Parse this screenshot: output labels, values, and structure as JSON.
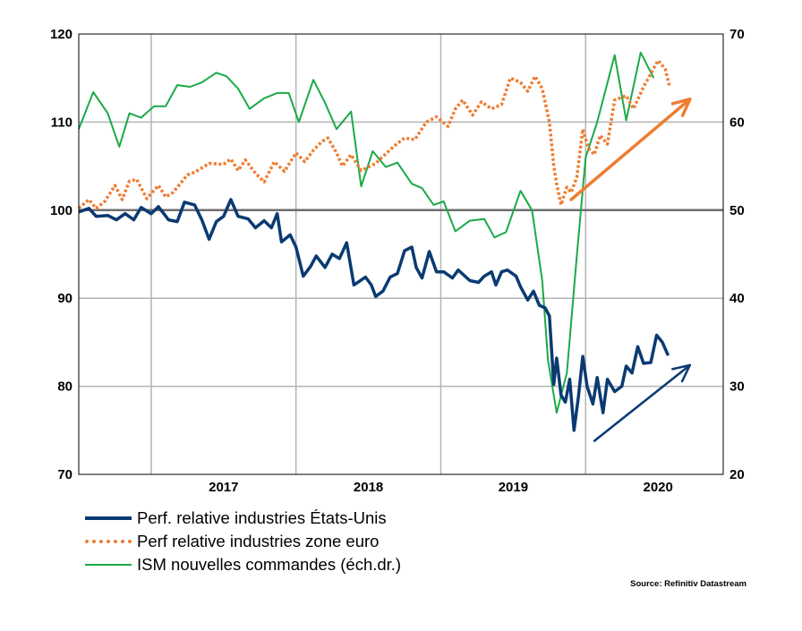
{
  "chart_data": {
    "type": "line",
    "x_labels": [
      "2017",
      "2018",
      "2019",
      "2020"
    ],
    "x_range": [
      2016.5,
      2020.95
    ],
    "y_left": {
      "range": [
        70,
        120
      ],
      "ticks": [
        70,
        80,
        90,
        100,
        110,
        120
      ]
    },
    "y_right": {
      "range": [
        20,
        70
      ],
      "ticks": [
        20,
        30,
        40,
        50,
        60,
        70
      ]
    },
    "grid": true,
    "reference_line": 100,
    "legend_position": "bottom-left",
    "series": [
      {
        "name": "Perf. relative industries États-Unis",
        "axis": "left",
        "color": "#0a3a72",
        "style": "solid",
        "points": [
          [
            2016.5,
            99.8
          ],
          [
            2016.57,
            100.2
          ],
          [
            2016.62,
            99.3
          ],
          [
            2016.7,
            99.4
          ],
          [
            2016.76,
            98.9
          ],
          [
            2016.82,
            99.6
          ],
          [
            2016.88,
            98.9
          ],
          [
            2016.93,
            100.3
          ],
          [
            2017.0,
            99.6
          ],
          [
            2017.05,
            100.4
          ],
          [
            2017.12,
            98.9
          ],
          [
            2017.18,
            98.7
          ],
          [
            2017.23,
            100.9
          ],
          [
            2017.3,
            100.6
          ],
          [
            2017.35,
            98.9
          ],
          [
            2017.4,
            96.7
          ],
          [
            2017.45,
            98.7
          ],
          [
            2017.5,
            99.3
          ],
          [
            2017.55,
            101.2
          ],
          [
            2017.6,
            99.3
          ],
          [
            2017.67,
            99.0
          ],
          [
            2017.72,
            98.0
          ],
          [
            2017.78,
            98.8
          ],
          [
            2017.83,
            98.0
          ],
          [
            2017.87,
            99.6
          ],
          [
            2017.9,
            96.4
          ],
          [
            2017.96,
            97.2
          ],
          [
            2018.0,
            95.8
          ],
          [
            2018.05,
            92.5
          ],
          [
            2018.1,
            93.6
          ],
          [
            2018.14,
            94.8
          ],
          [
            2018.2,
            93.5
          ],
          [
            2018.25,
            95.0
          ],
          [
            2018.3,
            94.5
          ],
          [
            2018.35,
            96.3
          ],
          [
            2018.4,
            91.5
          ],
          [
            2018.48,
            92.4
          ],
          [
            2018.52,
            91.5
          ],
          [
            2018.55,
            90.2
          ],
          [
            2018.6,
            90.8
          ],
          [
            2018.65,
            92.4
          ],
          [
            2018.7,
            92.8
          ],
          [
            2018.75,
            95.4
          ],
          [
            2018.8,
            95.8
          ],
          [
            2018.83,
            93.5
          ],
          [
            2018.87,
            92.3
          ],
          [
            2018.92,
            95.3
          ],
          [
            2018.97,
            93.0
          ],
          [
            2019.02,
            93.0
          ],
          [
            2019.08,
            92.3
          ],
          [
            2019.12,
            93.2
          ],
          [
            2019.2,
            92.0
          ],
          [
            2019.26,
            91.8
          ],
          [
            2019.3,
            92.5
          ],
          [
            2019.35,
            93.0
          ],
          [
            2019.38,
            91.5
          ],
          [
            2019.42,
            93.0
          ],
          [
            2019.46,
            93.2
          ],
          [
            2019.52,
            92.5
          ],
          [
            2019.55,
            91.3
          ],
          [
            2019.6,
            89.8
          ],
          [
            2019.64,
            90.8
          ],
          [
            2019.68,
            89.2
          ],
          [
            2019.72,
            88.9
          ],
          [
            2019.75,
            88.0
          ],
          [
            2019.78,
            80.2
          ],
          [
            2019.8,
            83.2
          ],
          [
            2019.83,
            79.0
          ],
          [
            2019.86,
            78.2
          ],
          [
            2019.89,
            80.8
          ],
          [
            2019.92,
            75.0
          ],
          [
            2019.95,
            78.8
          ],
          [
            2019.98,
            83.4
          ],
          [
            2020.01,
            80.0
          ],
          [
            2020.05,
            78.0
          ],
          [
            2020.08,
            81.0
          ],
          [
            2020.12,
            77.0
          ],
          [
            2020.15,
            80.8
          ],
          [
            2020.2,
            79.4
          ],
          [
            2020.25,
            80.0
          ],
          [
            2020.28,
            82.3
          ],
          [
            2020.32,
            81.5
          ],
          [
            2020.36,
            84.5
          ],
          [
            2020.4,
            82.6
          ],
          [
            2020.45,
            82.7
          ],
          [
            2020.49,
            85.8
          ],
          [
            2020.53,
            85.0
          ],
          [
            2020.57,
            83.5
          ]
        ]
      },
      {
        "name": "Perf relative industries zone euro",
        "axis": "left",
        "color": "#ee7d32",
        "style": "dotted",
        "points": [
          [
            2016.5,
            100.2
          ],
          [
            2016.57,
            101.2
          ],
          [
            2016.62,
            100.2
          ],
          [
            2016.68,
            101.0
          ],
          [
            2016.75,
            102.8
          ],
          [
            2016.8,
            101.2
          ],
          [
            2016.85,
            103.3
          ],
          [
            2016.9,
            103.5
          ],
          [
            2016.97,
            101.3
          ],
          [
            2017.05,
            102.8
          ],
          [
            2017.1,
            101.5
          ],
          [
            2017.15,
            102.0
          ],
          [
            2017.2,
            103.0
          ],
          [
            2017.25,
            104.0
          ],
          [
            2017.3,
            104.3
          ],
          [
            2017.4,
            105.3
          ],
          [
            2017.5,
            105.2
          ],
          [
            2017.55,
            105.8
          ],
          [
            2017.6,
            104.5
          ],
          [
            2017.65,
            105.7
          ],
          [
            2017.72,
            104.2
          ],
          [
            2017.78,
            103.2
          ],
          [
            2017.85,
            105.5
          ],
          [
            2017.92,
            104.4
          ],
          [
            2018.0,
            106.5
          ],
          [
            2018.06,
            105.5
          ],
          [
            2018.12,
            106.8
          ],
          [
            2018.18,
            107.8
          ],
          [
            2018.22,
            108.2
          ],
          [
            2018.28,
            106.5
          ],
          [
            2018.32,
            105.0
          ],
          [
            2018.38,
            106.3
          ],
          [
            2018.45,
            104.5
          ],
          [
            2018.55,
            105.3
          ],
          [
            2018.62,
            106.4
          ],
          [
            2018.68,
            107.3
          ],
          [
            2018.75,
            108.2
          ],
          [
            2018.82,
            108.0
          ],
          [
            2018.9,
            110.0
          ],
          [
            2018.97,
            110.6
          ],
          [
            2019.05,
            109.5
          ],
          [
            2019.1,
            111.5
          ],
          [
            2019.15,
            112.5
          ],
          [
            2019.22,
            110.8
          ],
          [
            2019.28,
            112.3
          ],
          [
            2019.35,
            111.5
          ],
          [
            2019.42,
            112.0
          ],
          [
            2019.48,
            115.0
          ],
          [
            2019.55,
            114.5
          ],
          [
            2019.6,
            113.5
          ],
          [
            2019.65,
            115.2
          ],
          [
            2019.7,
            113.8
          ],
          [
            2019.75,
            110.0
          ],
          [
            2019.78,
            105.0
          ],
          [
            2019.8,
            103.0
          ],
          [
            2019.83,
            100.6
          ],
          [
            2019.87,
            102.6
          ],
          [
            2019.9,
            102.0
          ],
          [
            2019.94,
            103.8
          ],
          [
            2019.98,
            109.2
          ],
          [
            2020.02,
            107.0
          ],
          [
            2020.06,
            106.3
          ],
          [
            2020.1,
            108.5
          ],
          [
            2020.15,
            107.5
          ],
          [
            2020.2,
            112.5
          ],
          [
            2020.28,
            113.0
          ],
          [
            2020.33,
            111.5
          ],
          [
            2020.4,
            114.0
          ],
          [
            2020.45,
            115.5
          ],
          [
            2020.5,
            117.0
          ],
          [
            2020.55,
            116.0
          ],
          [
            2020.58,
            114.0
          ]
        ]
      },
      {
        "name": "ISM nouvelles commandes (éch.dr.)",
        "axis": "right",
        "color": "#1aaa48",
        "style": "solid",
        "points": [
          [
            2016.5,
            59.2
          ],
          [
            2016.6,
            63.4
          ],
          [
            2016.7,
            61.0
          ],
          [
            2016.78,
            57.2
          ],
          [
            2016.85,
            61.0
          ],
          [
            2016.93,
            60.5
          ],
          [
            2017.02,
            61.8
          ],
          [
            2017.1,
            61.8
          ],
          [
            2017.18,
            64.2
          ],
          [
            2017.27,
            64.0
          ],
          [
            2017.35,
            64.5
          ],
          [
            2017.45,
            65.6
          ],
          [
            2017.52,
            65.2
          ],
          [
            2017.6,
            63.8
          ],
          [
            2017.68,
            61.5
          ],
          [
            2017.78,
            62.7
          ],
          [
            2017.87,
            63.3
          ],
          [
            2017.95,
            63.3
          ],
          [
            2018.02,
            60.0
          ],
          [
            2018.12,
            64.8
          ],
          [
            2018.2,
            62.2
          ],
          [
            2018.28,
            59.2
          ],
          [
            2018.38,
            61.2
          ],
          [
            2018.45,
            52.7
          ],
          [
            2018.53,
            56.7
          ],
          [
            2018.62,
            54.9
          ],
          [
            2018.7,
            55.4
          ],
          [
            2018.8,
            53.0
          ],
          [
            2018.87,
            52.5
          ],
          [
            2018.95,
            50.6
          ],
          [
            2019.02,
            51.0
          ],
          [
            2019.1,
            47.6
          ],
          [
            2019.2,
            48.8
          ],
          [
            2019.3,
            49.0
          ],
          [
            2019.37,
            46.9
          ],
          [
            2019.45,
            47.5
          ],
          [
            2019.55,
            52.2
          ],
          [
            2019.63,
            50.0
          ],
          [
            2019.7,
            42.0
          ],
          [
            2019.74,
            33.0
          ],
          [
            2019.8,
            27.0
          ],
          [
            2019.87,
            31.5
          ],
          [
            2019.94,
            45.0
          ],
          [
            2020.0,
            56.0
          ],
          [
            2020.08,
            60.0
          ],
          [
            2020.2,
            67.6
          ],
          [
            2020.28,
            60.2
          ],
          [
            2020.38,
            67.9
          ],
          [
            2020.47,
            65.0
          ]
        ]
      }
    ],
    "arrows": [
      {
        "series": "Perf relative industries zone euro",
        "axis": "left",
        "from": [
          2019.9,
          101.2
        ],
        "to": [
          2020.72,
          112.6
        ],
        "color": "#ee7d32"
      },
      {
        "series": "Perf. relative industries États-Unis",
        "axis": "left",
        "from": [
          2020.06,
          73.8
        ],
        "to": [
          2020.72,
          82.4
        ],
        "color": "#0a3a72"
      }
    ]
  },
  "legend": [
    {
      "label": "Perf. relative industries États-Unis",
      "color": "#0a3a72",
      "style": "solid"
    },
    {
      "label": "Perf relative industries zone euro",
      "color": "#ee7d32",
      "style": "dotted"
    },
    {
      "label": "ISM nouvelles commandes (éch.dr.)",
      "color": "#1aaa48",
      "style": "solid"
    }
  ],
  "source": "Source: Refinitiv Datastream"
}
